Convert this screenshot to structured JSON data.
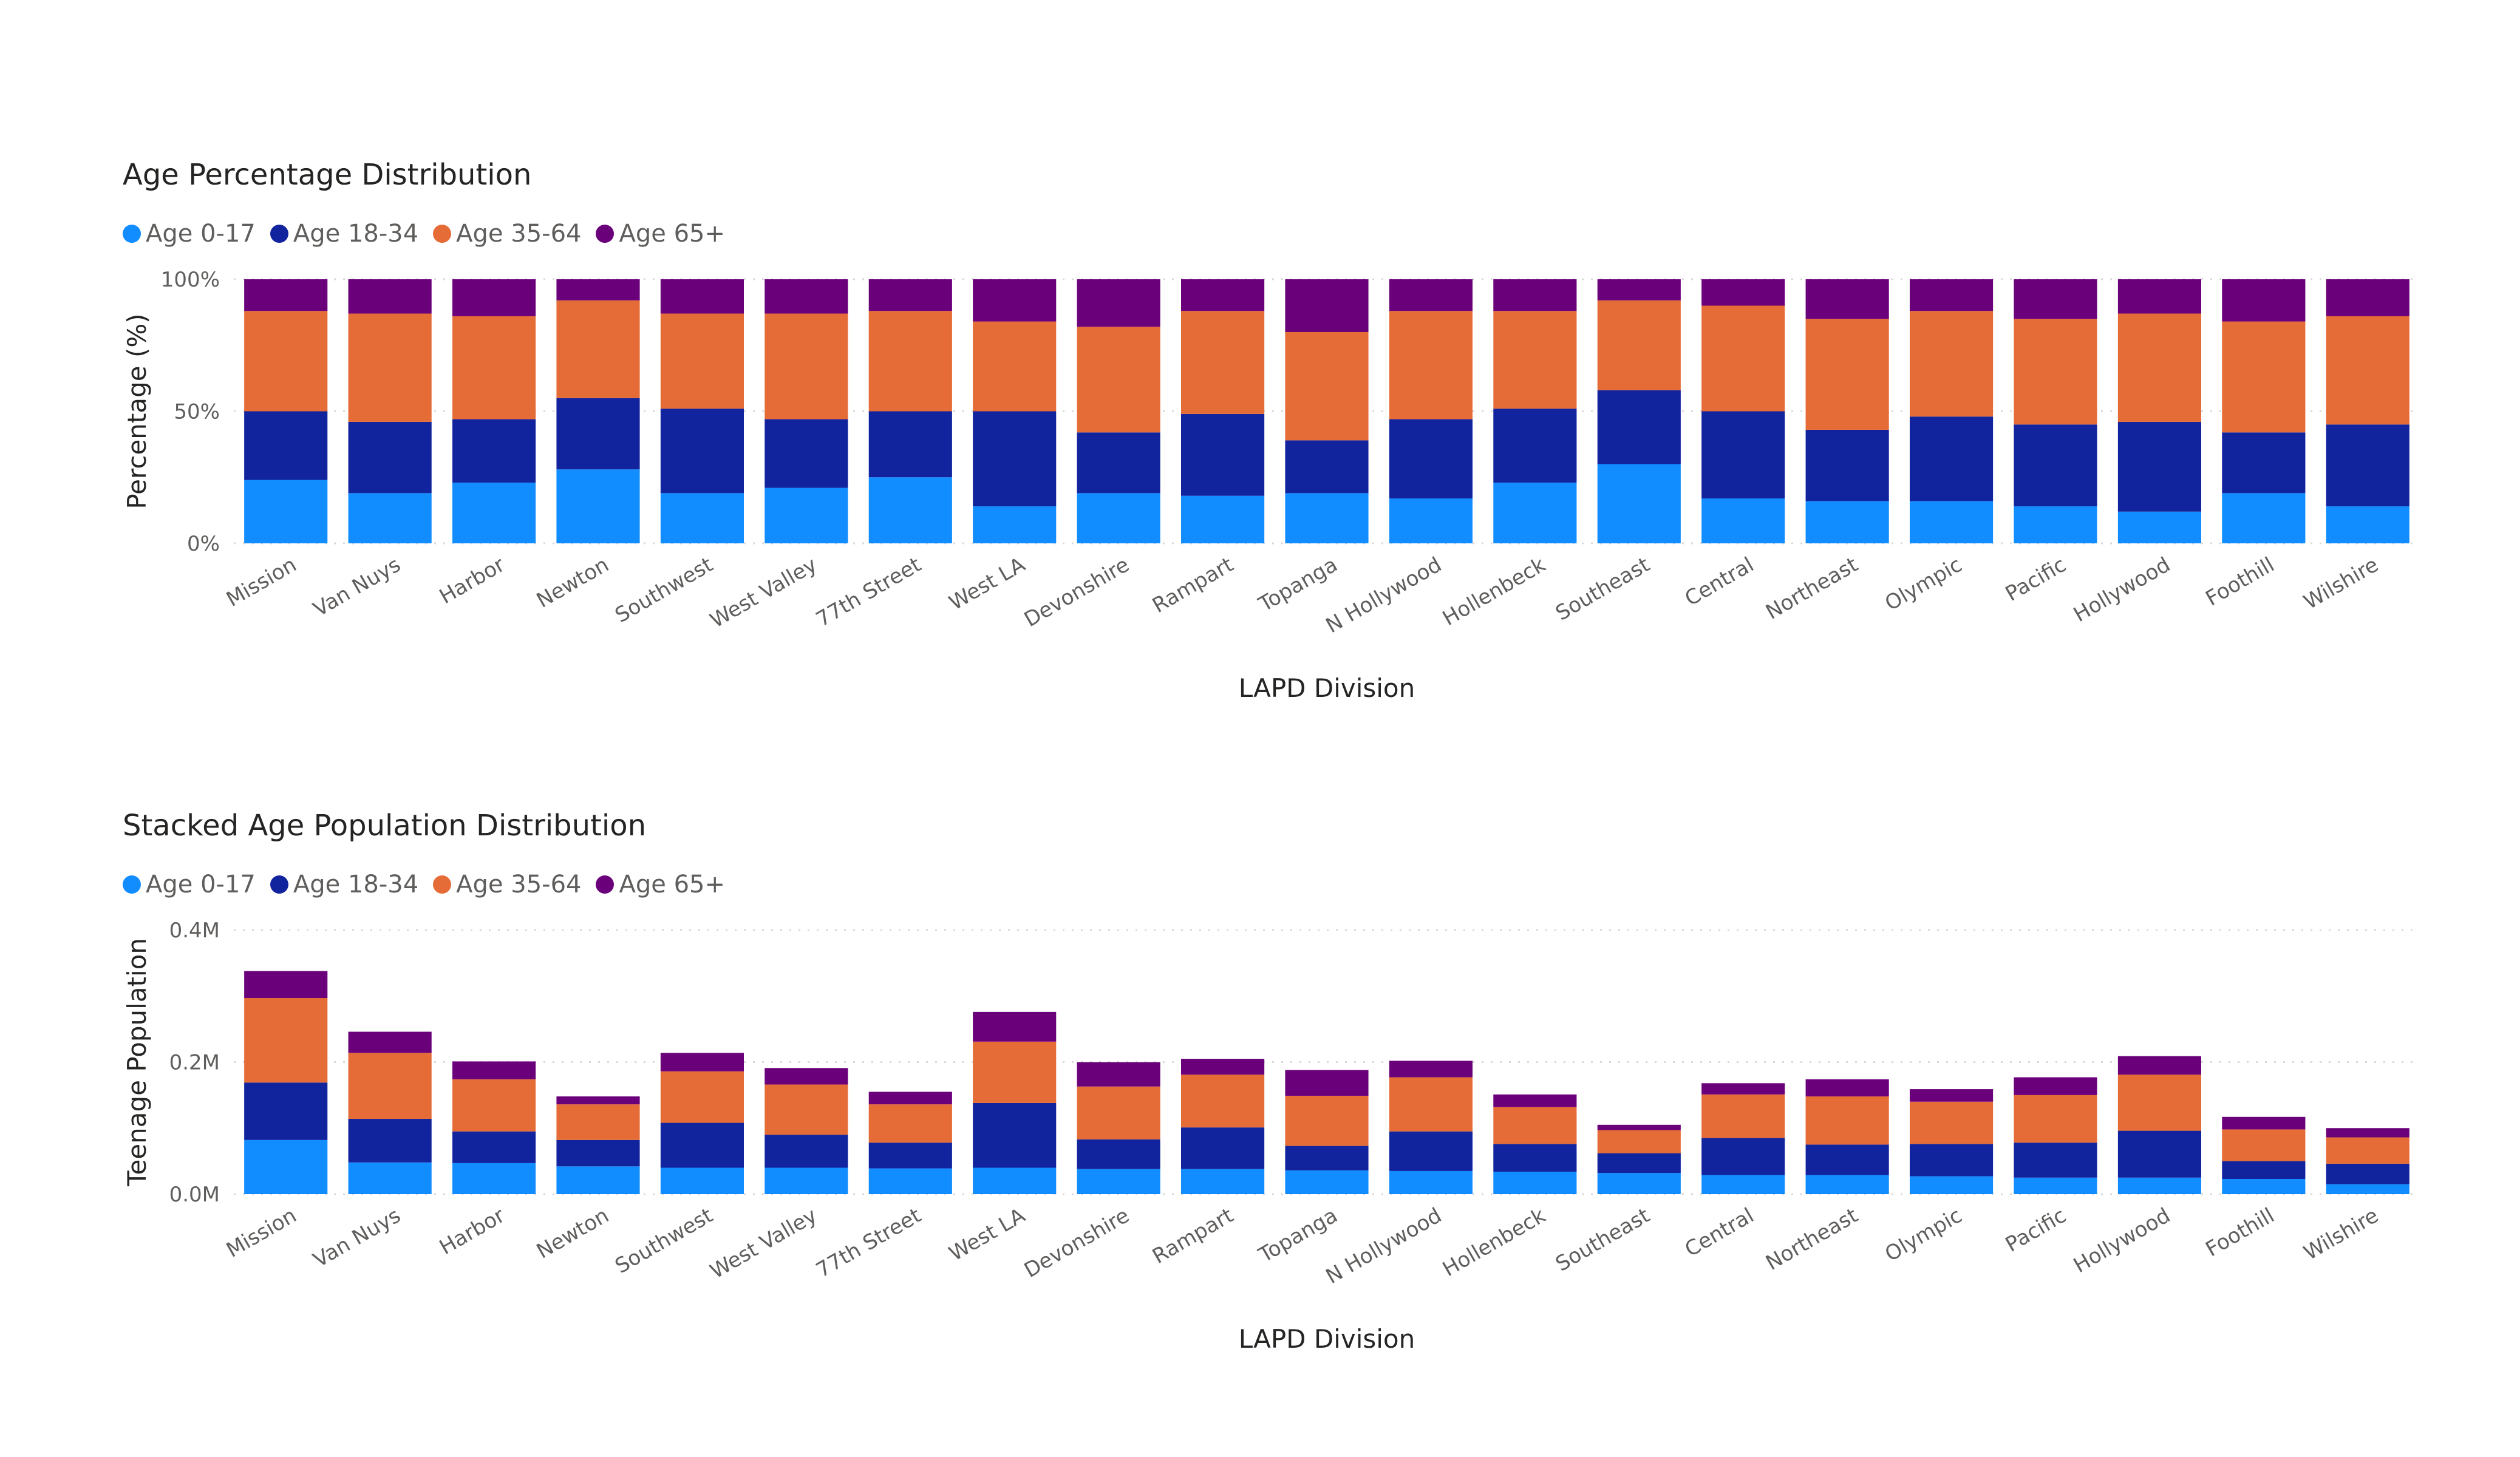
{
  "colors": {
    "age_0_17": "#118dff",
    "age_18_34": "#12239e",
    "age_35_64": "#e66c37",
    "age_65_plus": "#6b007b",
    "gridline": "#d9d9d9"
  },
  "chart_data": [
    {
      "type": "bar",
      "stacked": true,
      "title": "Age Percentage Distribution",
      "xlabel": "LAPD Division",
      "ylabel": "Percentage (%)",
      "ylim": [
        0,
        100
      ],
      "yticks": [
        0,
        50,
        100
      ],
      "ytick_labels": [
        "0%",
        "50%",
        "100%"
      ],
      "grid": true,
      "legend": "top-left",
      "categories": [
        "Mission",
        "Van Nuys",
        "Harbor",
        "Newton",
        "Southwest",
        "West Valley",
        "77th Street",
        "West LA",
        "Devonshire",
        "Rampart",
        "Topanga",
        "N Hollywood",
        "Hollenbeck",
        "Southeast",
        "Central",
        "Northeast",
        "Olympic",
        "Pacific",
        "Hollywood",
        "Foothill",
        "Wilshire"
      ],
      "series": [
        {
          "name": "Age 0-17",
          "values": [
            24,
            19,
            23,
            28,
            19,
            21,
            25,
            14,
            19,
            18,
            19,
            17,
            23,
            30,
            17,
            16,
            16,
            14,
            12,
            19,
            14
          ]
        },
        {
          "name": "Age 18-34",
          "values": [
            26,
            27,
            24,
            27,
            32,
            26,
            25,
            36,
            23,
            31,
            20,
            30,
            28,
            28,
            33,
            27,
            32,
            31,
            34,
            23,
            31
          ]
        },
        {
          "name": "Age 35-64",
          "values": [
            38,
            41,
            39,
            37,
            36,
            40,
            38,
            34,
            40,
            39,
            41,
            41,
            37,
            34,
            40,
            42,
            40,
            40,
            41,
            42,
            41
          ]
        },
        {
          "name": "Age 65+",
          "values": [
            12,
            13,
            14,
            8,
            13,
            13,
            12,
            16,
            18,
            12,
            20,
            12,
            12,
            8,
            10,
            15,
            12,
            15,
            13,
            16,
            14
          ]
        }
      ]
    },
    {
      "type": "bar",
      "stacked": true,
      "title": "Stacked Age Population Distribution",
      "xlabel": "LAPD Division",
      "ylabel": "Teenage Population",
      "ylim": [
        0,
        0.4
      ],
      "yticks": [
        0,
        0.2,
        0.4
      ],
      "ytick_labels": [
        "0.0M",
        "0.2M",
        "0.4M"
      ],
      "units": "M",
      "grid": true,
      "legend": "top-left",
      "categories": [
        "Mission",
        "Van Nuys",
        "Harbor",
        "Newton",
        "Southwest",
        "West Valley",
        "77th Street",
        "West LA",
        "Devonshire",
        "Rampart",
        "Topanga",
        "N Hollywood",
        "Hollenbeck",
        "Southeast",
        "Central",
        "Northeast",
        "Olympic",
        "Pacific",
        "Hollywood",
        "Foothill",
        "Wilshire"
      ],
      "series": [
        {
          "name": "Age 0-17",
          "values": [
            0.082,
            0.048,
            0.047,
            0.042,
            0.04,
            0.04,
            0.039,
            0.04,
            0.038,
            0.038,
            0.036,
            0.035,
            0.034,
            0.032,
            0.029,
            0.029,
            0.027,
            0.025,
            0.025,
            0.023,
            0.015
          ]
        },
        {
          "name": "Age 18-34",
          "values": [
            0.087,
            0.066,
            0.048,
            0.04,
            0.068,
            0.05,
            0.039,
            0.098,
            0.045,
            0.063,
            0.037,
            0.06,
            0.042,
            0.03,
            0.056,
            0.046,
            0.049,
            0.053,
            0.071,
            0.027,
            0.031
          ]
        },
        {
          "name": "Age 35-64",
          "values": [
            0.128,
            0.1,
            0.079,
            0.054,
            0.078,
            0.076,
            0.058,
            0.093,
            0.08,
            0.08,
            0.076,
            0.082,
            0.056,
            0.035,
            0.066,
            0.073,
            0.064,
            0.072,
            0.085,
            0.048,
            0.04
          ]
        },
        {
          "name": "Age 65+",
          "values": [
            0.041,
            0.032,
            0.027,
            0.012,
            0.028,
            0.025,
            0.019,
            0.045,
            0.037,
            0.024,
            0.039,
            0.025,
            0.019,
            0.008,
            0.017,
            0.026,
            0.019,
            0.027,
            0.028,
            0.019,
            0.014
          ]
        }
      ]
    }
  ]
}
